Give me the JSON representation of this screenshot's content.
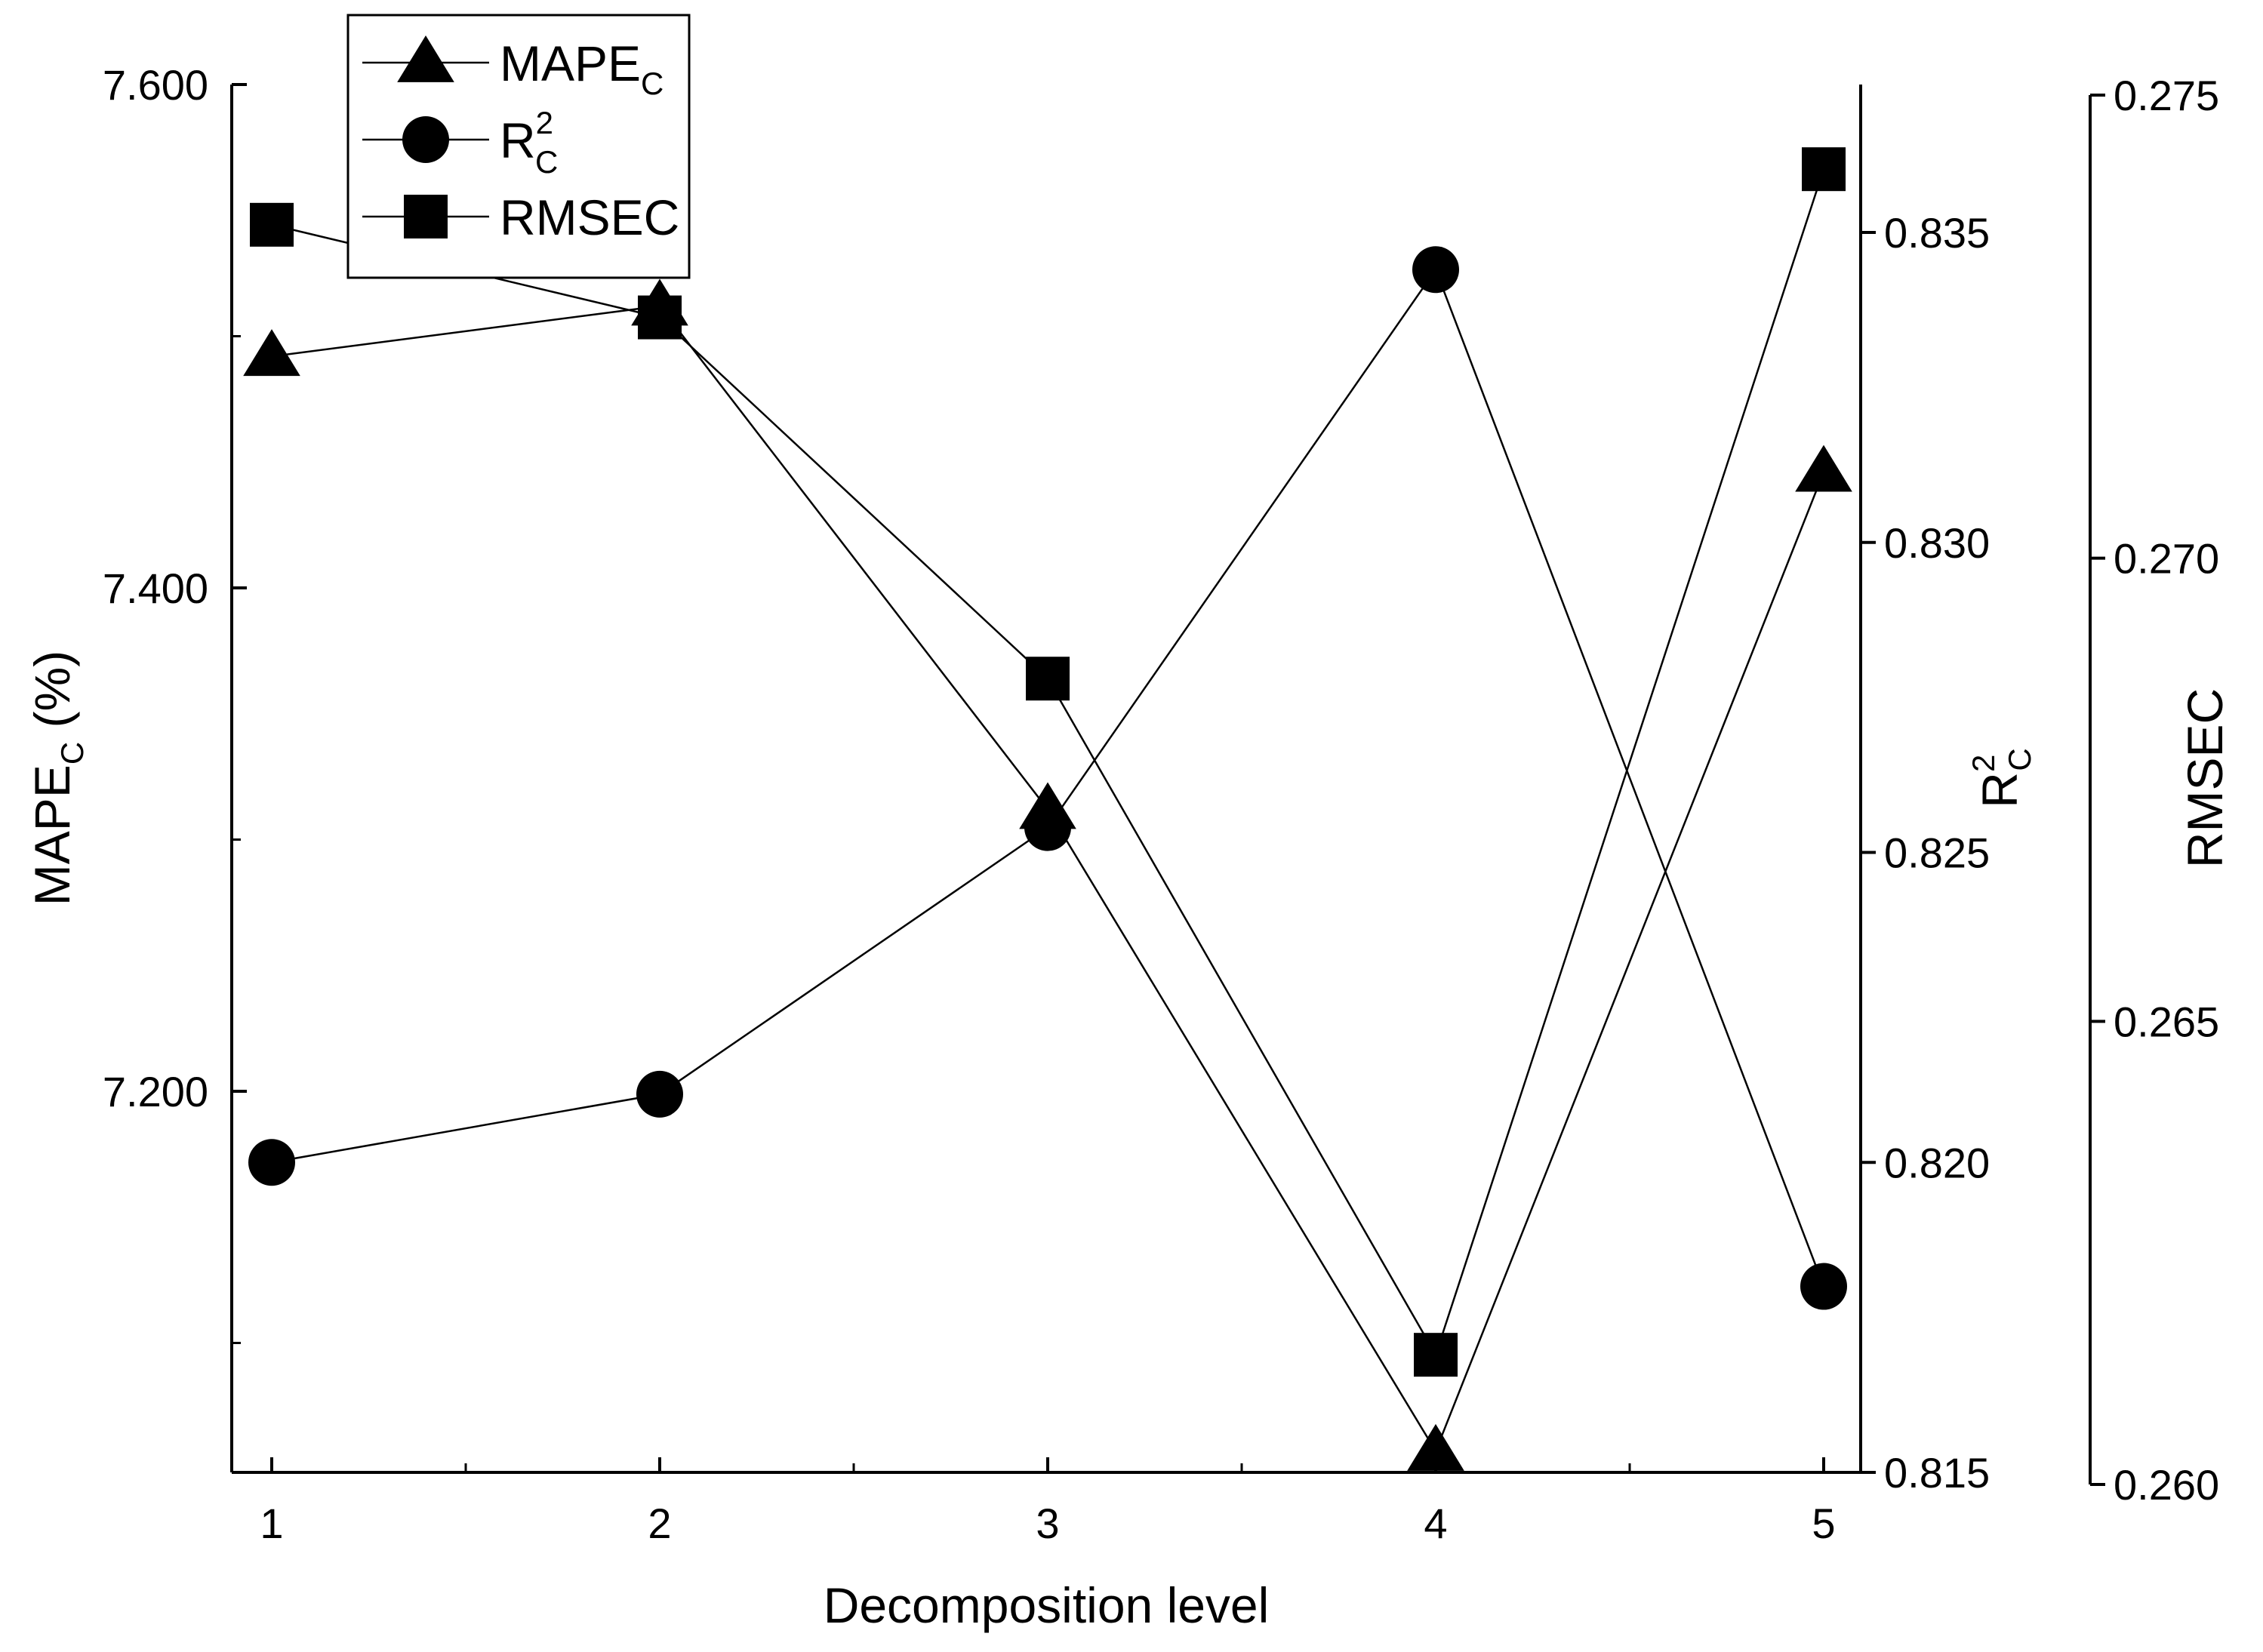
{
  "chart_data": {
    "type": "line",
    "xlabel": "Decomposition level",
    "x": [
      1,
      2,
      3,
      4,
      5
    ],
    "x_ticks": [
      "1",
      "2",
      "3",
      "4",
      "5"
    ],
    "series": [
      {
        "name": "MAPE",
        "name_subscript": "C",
        "axis": "left",
        "marker": "triangle",
        "values": [
          7.492,
          7.512,
          7.312,
          7.057,
          7.446
        ]
      },
      {
        "name": "R",
        "name_superscript": "2",
        "name_subscript": "C",
        "axis": "right1",
        "marker": "circle",
        "values": [
          0.82,
          0.8211,
          0.8254,
          0.8344,
          0.818
        ]
      },
      {
        "name": "RMSEC",
        "axis": "right2",
        "marker": "square",
        "values": [
          0.2736,
          0.2726,
          0.2687,
          0.2614,
          0.2742
        ]
      }
    ],
    "y_left": {
      "label_main": "MAPE",
      "label_sub": "C",
      "label_unit": " (%)",
      "range": [
        7.05,
        7.6
      ],
      "ticks": [
        "7.600",
        "7.400",
        "7.200"
      ],
      "tick_values": [
        7.6,
        7.4,
        7.2
      ]
    },
    "y_right1": {
      "label_main": "R",
      "label_sup": "2",
      "label_sub": "C",
      "range": [
        0.815,
        0.8372
      ],
      "ticks": [
        "0.835",
        "0.830",
        "0.825",
        "0.820",
        "0.815"
      ],
      "tick_values": [
        0.835,
        0.83,
        0.825,
        0.82,
        0.815
      ]
    },
    "y_right2": {
      "label": "RMSEC",
      "range": [
        0.26,
        0.275
      ],
      "ticks": [
        "0.275",
        "0.270",
        "0.265",
        "0.260"
      ],
      "tick_values": [
        0.275,
        0.27,
        0.265,
        0.26
      ]
    },
    "legend": {
      "placement": "top-left",
      "items": [
        {
          "marker": "triangle",
          "main": "MAPE",
          "sub": "C",
          "sup": ""
        },
        {
          "marker": "circle",
          "main": "R",
          "sub": "C",
          "sup": "2"
        },
        {
          "marker": "square",
          "main": "RMSEC",
          "sub": "",
          "sup": ""
        }
      ]
    },
    "grid": false,
    "colors": {
      "line": "#000000",
      "marker": "#000000",
      "background": "#ffffff"
    }
  }
}
